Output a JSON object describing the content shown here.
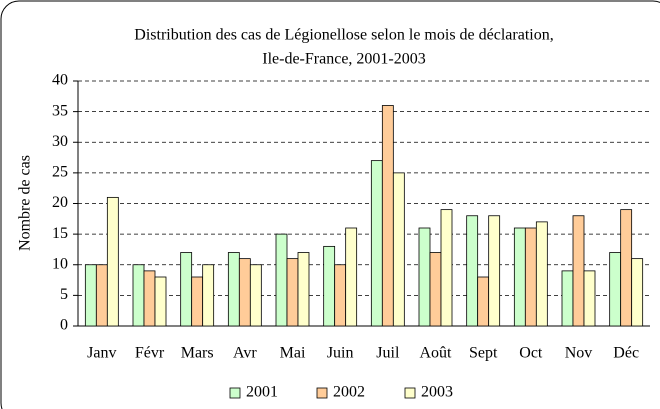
{
  "chart_data": {
    "type": "bar",
    "title": [
      "Distribution des cas de Légionellose selon le mois de déclaration,",
      "Ile-de-France, 2001-2003"
    ],
    "y_label": "Nombre de cas",
    "categories": [
      "Janv",
      "Févr",
      "Mars",
      "Avr",
      "Mai",
      "Juin",
      "Juil",
      "Août",
      "Sept",
      "Oct",
      "Nov",
      "Déc"
    ],
    "series": [
      {
        "name": "2001",
        "color": "#ccffcc",
        "values": [
          10,
          10,
          12,
          12,
          15,
          13,
          27,
          16,
          18,
          16,
          9,
          12
        ]
      },
      {
        "name": "2002",
        "color": "#ffcc99",
        "values": [
          10,
          9,
          8,
          11,
          11,
          10,
          36,
          12,
          8,
          16,
          18,
          19
        ]
      },
      {
        "name": "2003",
        "color": "#ffffcc",
        "values": [
          21,
          8,
          10,
          10,
          12,
          16,
          25,
          19,
          18,
          17,
          9,
          11
        ]
      }
    ],
    "ylim": [
      0,
      40
    ],
    "yticks": [
      0,
      5,
      10,
      15,
      20,
      25,
      30,
      35,
      40
    ],
    "grid": true,
    "legend": "bottom"
  }
}
